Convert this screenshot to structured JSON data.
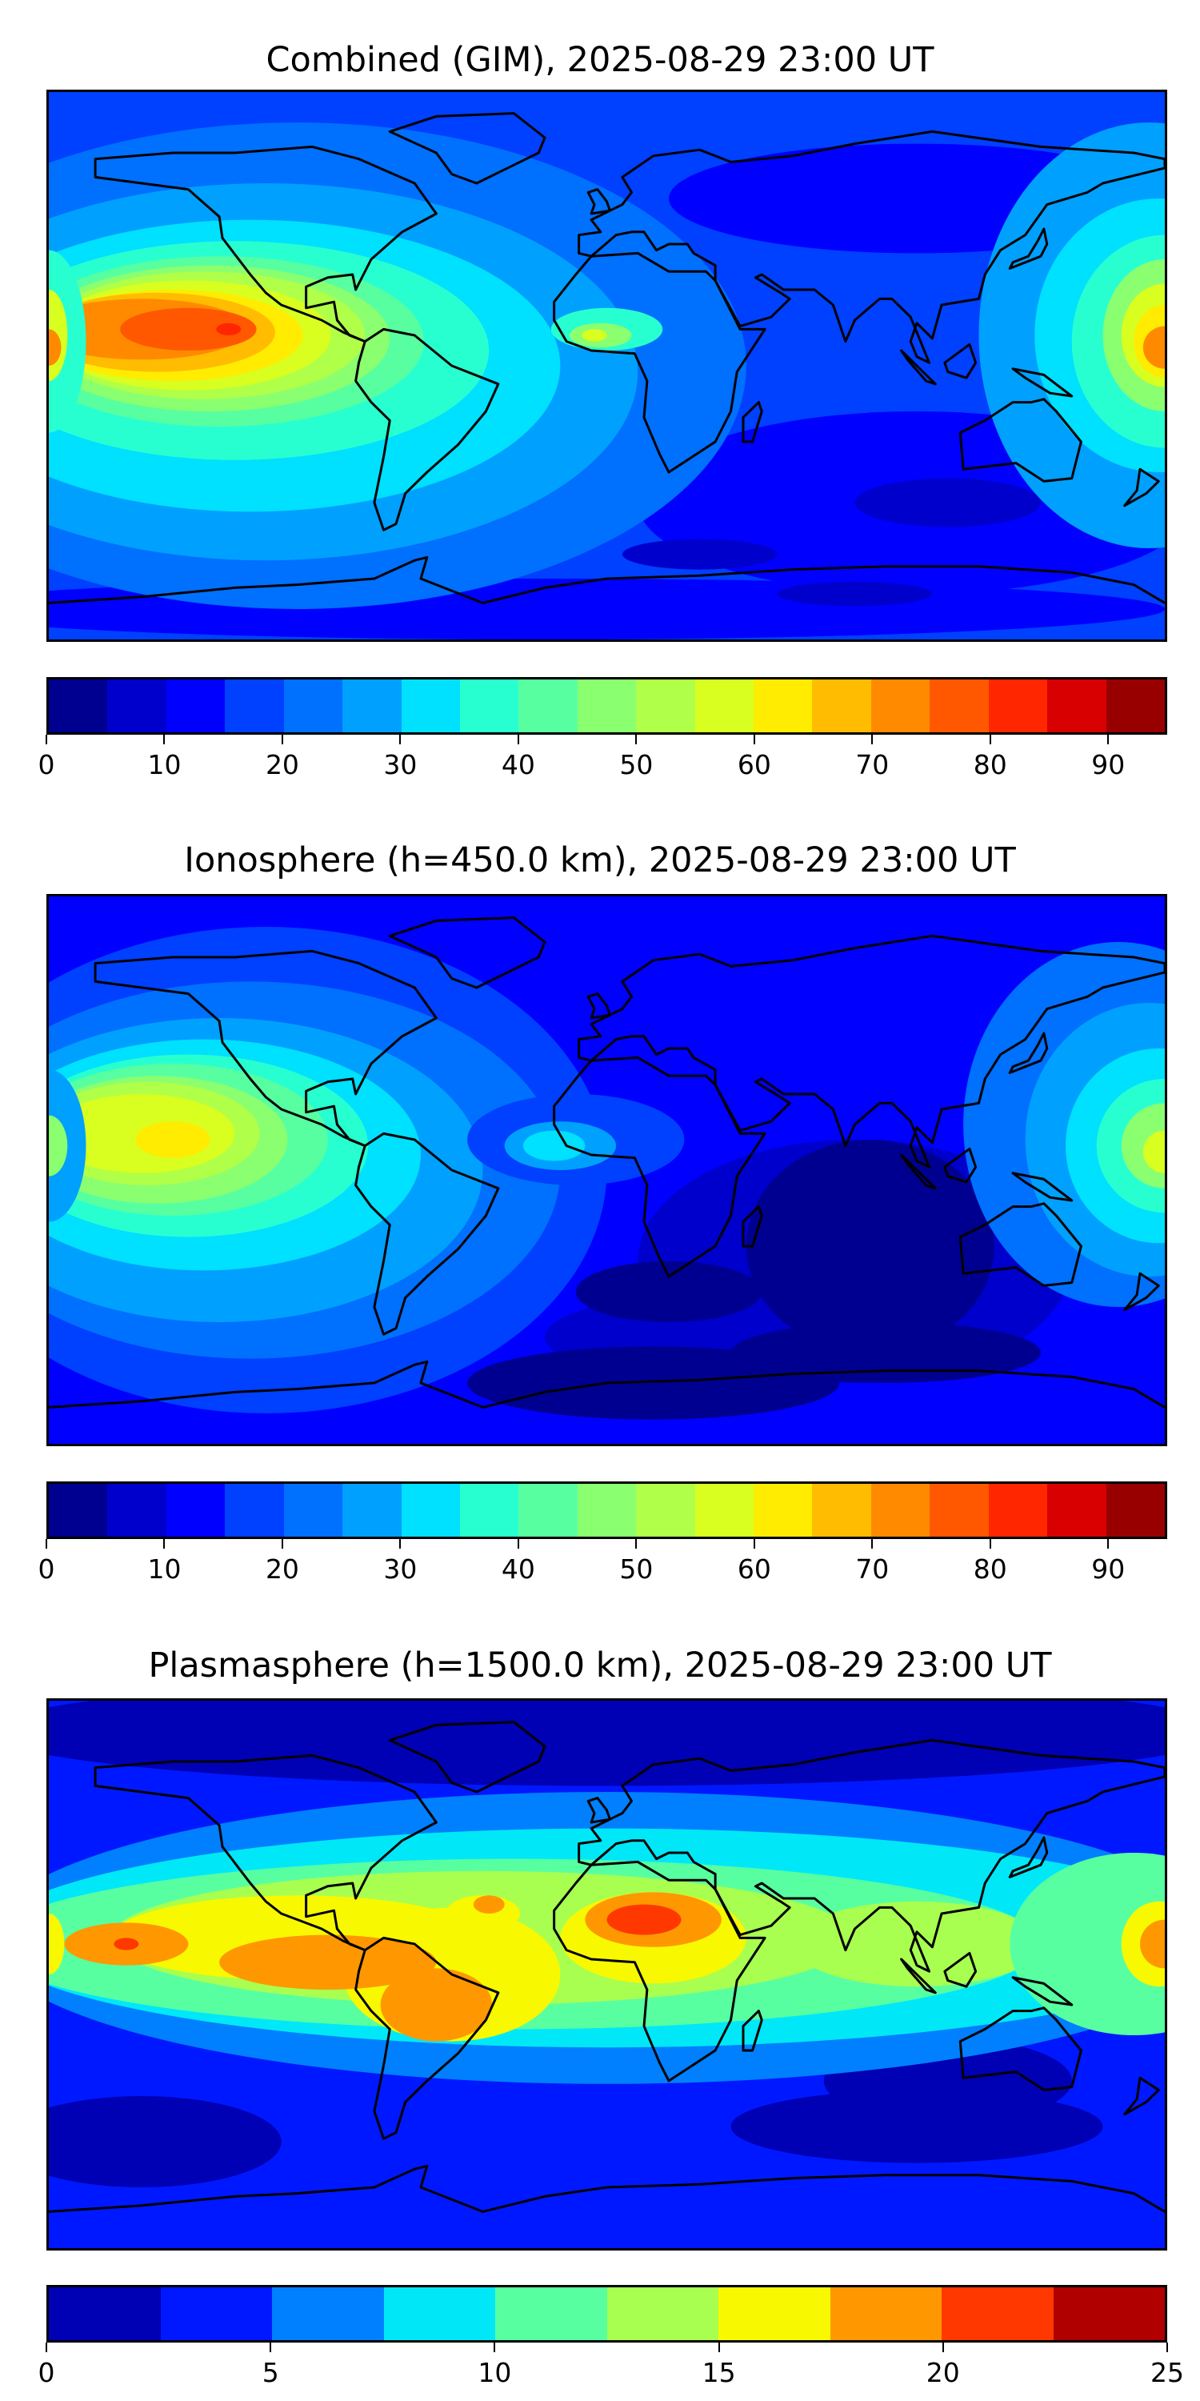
{
  "panels": [
    {
      "title": "Combined (GIM), 2025-08-29 23:00 UT",
      "colorbar": {
        "min": 0,
        "max": 95,
        "step": 5,
        "ticks": [
          0,
          10,
          20,
          30,
          40,
          50,
          60,
          70,
          80,
          90
        ],
        "tick_labels": [
          "0",
          "10",
          "20",
          "30",
          "40",
          "50",
          "60",
          "70",
          "80",
          "90"
        ]
      }
    },
    {
      "title": "Ionosphere  (h=450.0 km), 2025-08-29 23:00 UT",
      "colorbar": {
        "min": 0,
        "max": 95,
        "step": 5,
        "ticks": [
          0,
          10,
          20,
          30,
          40,
          50,
          60,
          70,
          80,
          90
        ],
        "tick_labels": [
          "0",
          "10",
          "20",
          "30",
          "40",
          "50",
          "60",
          "70",
          "80",
          "90"
        ]
      }
    },
    {
      "title": "Plasmasphere (h=1500.0 km), 2025-08-29 23:00 UT",
      "colorbar": {
        "min": 0,
        "max": 25,
        "step": 2.5,
        "ticks": [
          0,
          5,
          10,
          15,
          20,
          25
        ],
        "tick_labels": [
          "0",
          "5",
          "10",
          "15",
          "20",
          "25"
        ]
      }
    }
  ],
  "colormaps": {
    "jet19": [
      "#000090",
      "#0000cc",
      "#0000ff",
      "#0040ff",
      "#0070ff",
      "#00a0ff",
      "#00e0ff",
      "#28ffd0",
      "#58ffa0",
      "#8aff70",
      "#b0ff48",
      "#d8ff20",
      "#ffec00",
      "#ffbc00",
      "#ff8a00",
      "#ff5800",
      "#ff2600",
      "#d80000",
      "#980000"
    ],
    "jet10": [
      "#0000b4",
      "#0018ff",
      "#0080ff",
      "#00e8f8",
      "#58ffa0",
      "#a8ff50",
      "#f8f800",
      "#ff9800",
      "#ff3800",
      "#b00000"
    ]
  },
  "chart_data": [
    {
      "type": "heatmap",
      "title": "Combined (GIM), 2025-08-29 23:00 UT",
      "xlim": [
        -180,
        180
      ],
      "ylim": [
        -90,
        90
      ],
      "colorbar_range": [
        0,
        95
      ],
      "levels_step": 5,
      "max_region": "central Pacific ~80",
      "min_region": "southern Indian Ocean ~5-10"
    },
    {
      "type": "heatmap",
      "title": "Ionosphere  (h=450.0 km), 2025-08-29 23:00 UT",
      "xlim": [
        -180,
        180
      ],
      "ylim": [
        -90,
        90
      ],
      "colorbar_range": [
        0,
        95
      ],
      "levels_step": 5,
      "max_region": "central Pacific ~60-65",
      "min_region": "Indian Ocean / South Atlantic ~0-5"
    },
    {
      "type": "heatmap",
      "title": "Plasmasphere (h=1500.0 km), 2025-08-29 23:00 UT",
      "xlim": [
        -180,
        180
      ],
      "ylim": [
        -90,
        90
      ],
      "colorbar_range": [
        0,
        25
      ],
      "levels_step": 2.5,
      "max_region": "North Africa ~20-22.5",
      "min_region": "polar regions ~0-2.5"
    }
  ]
}
